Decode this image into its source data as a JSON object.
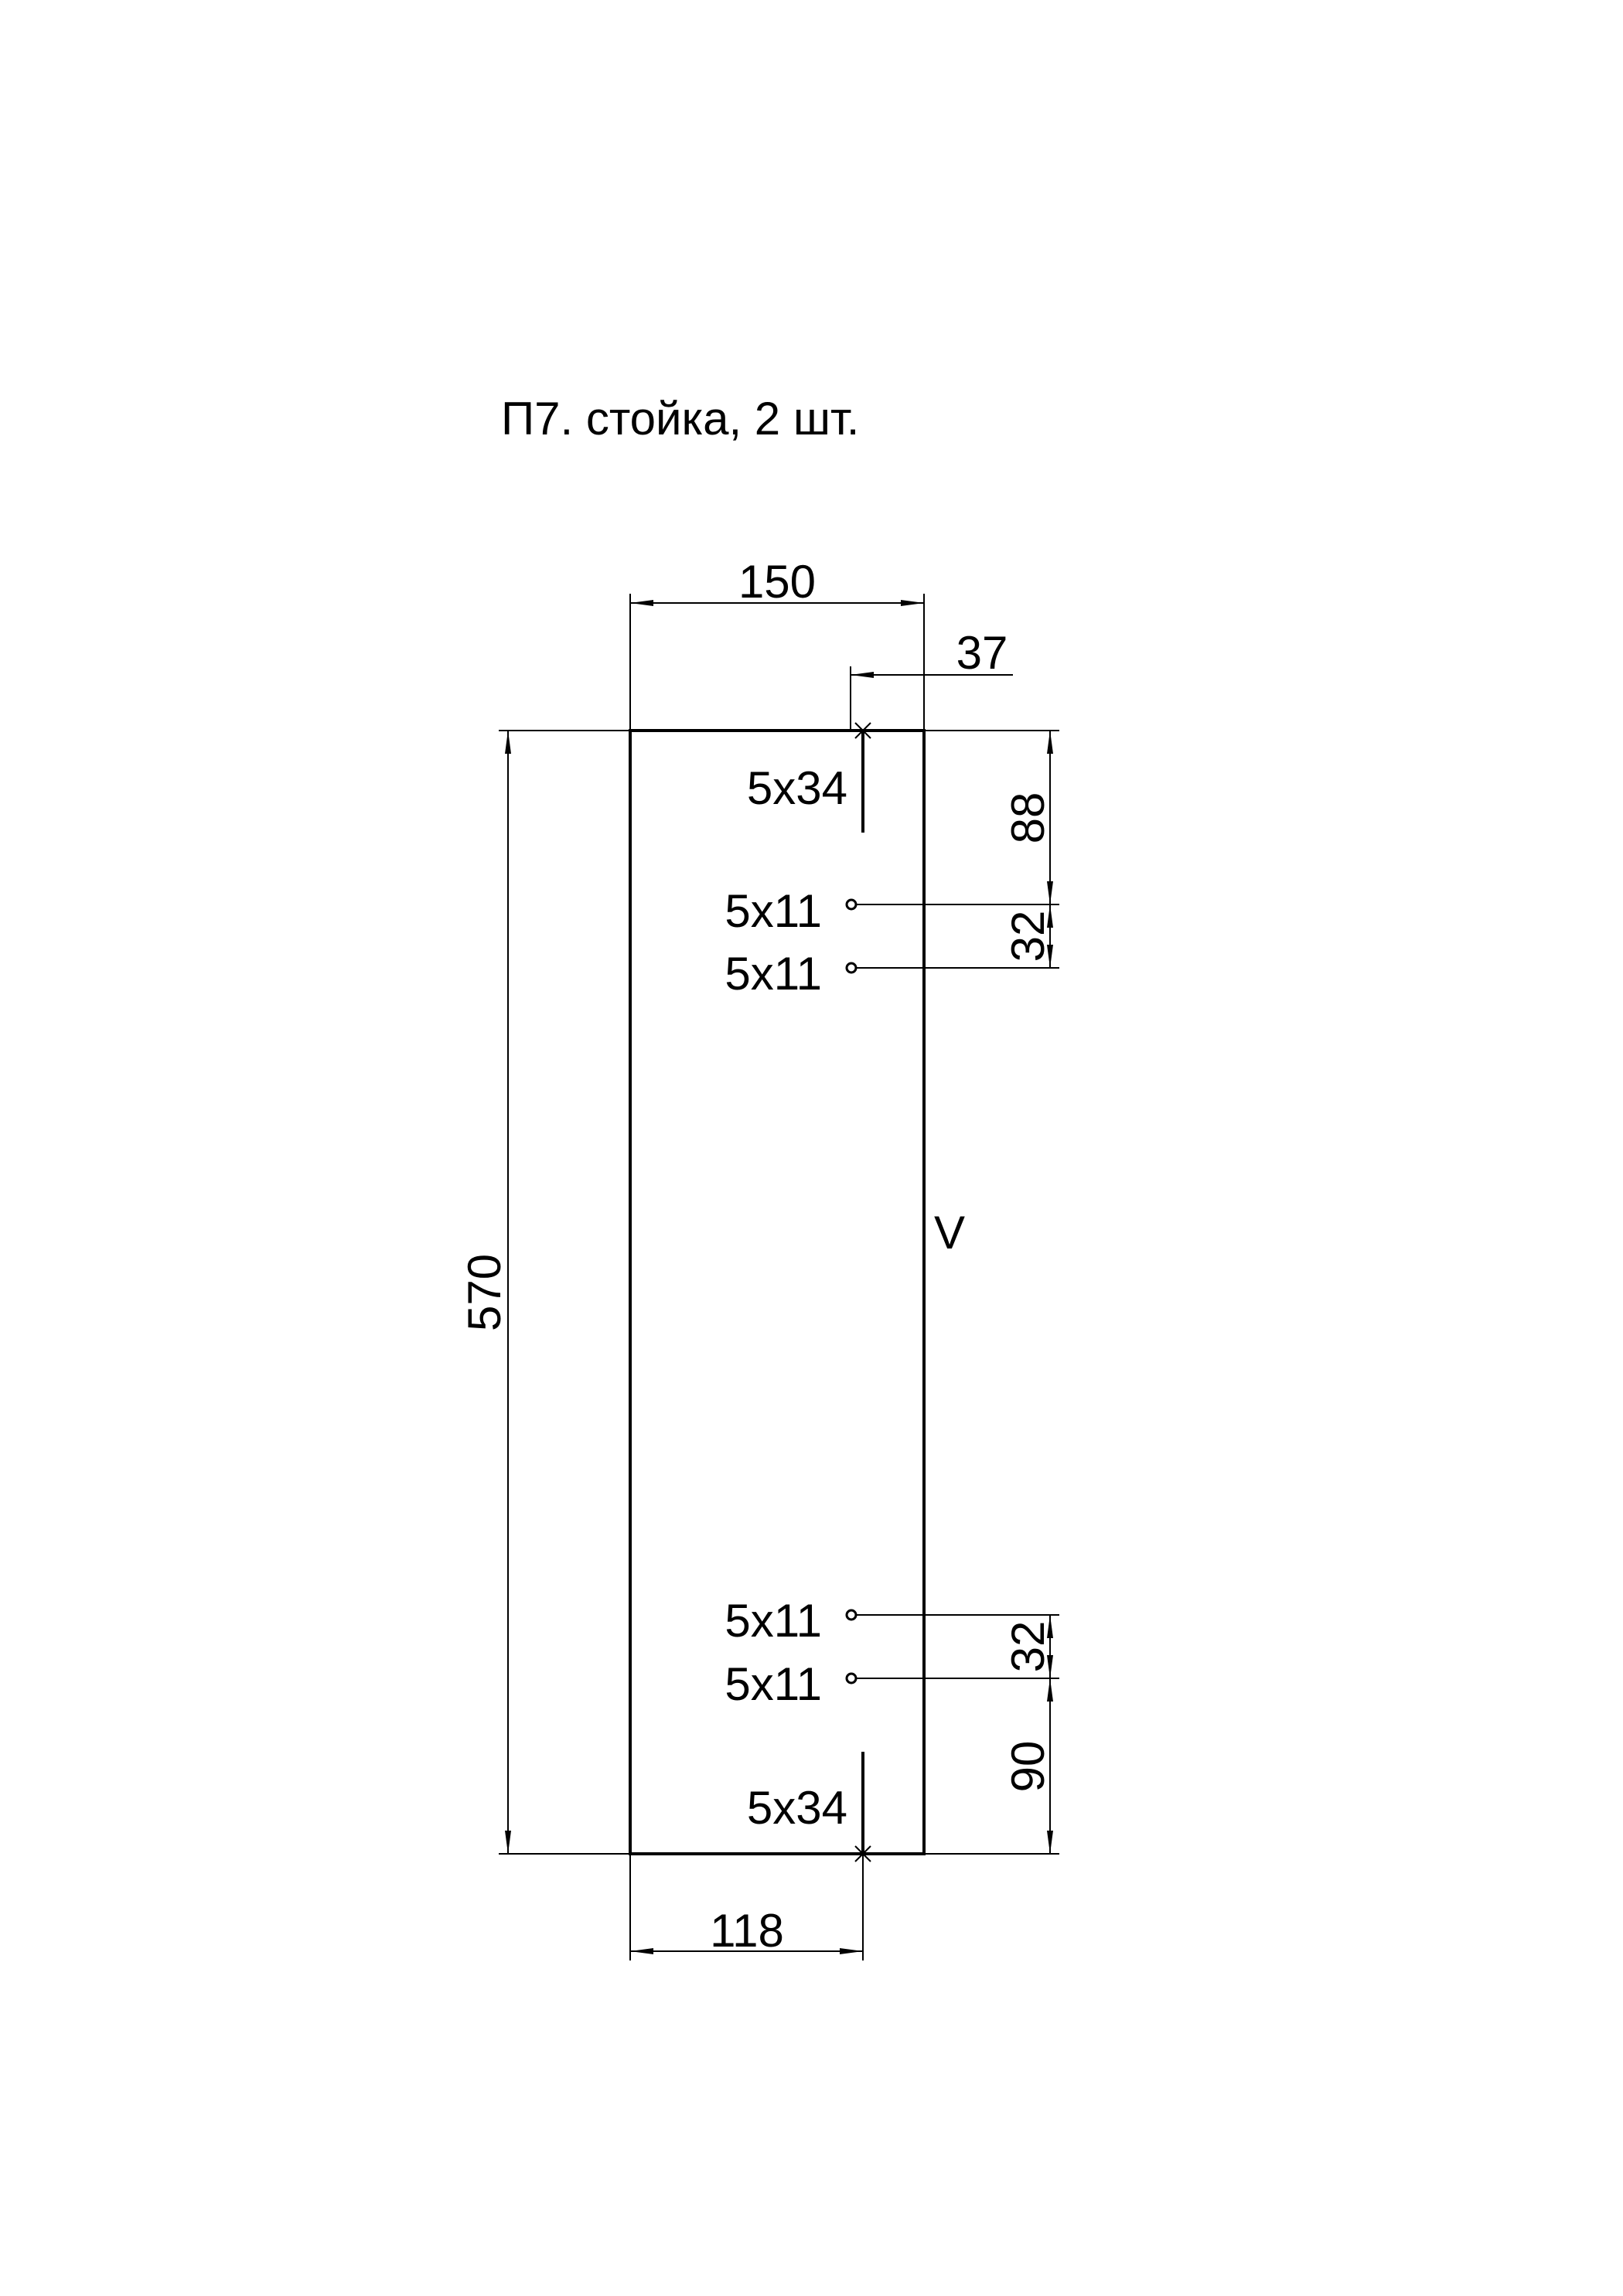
{
  "title": "П7. стойка, 2 шт.",
  "dimensions": {
    "overall_width": "150",
    "overall_height": "570",
    "edge_offset_top": "37",
    "edge_offset_bottom": "118",
    "top_hole_offset": "88",
    "top_hole_spacing": "32",
    "bottom_hole_spacing": "32",
    "bottom_hole_offset": "90"
  },
  "holes": {
    "slot_top": "5x34",
    "hole_1": "5x11",
    "hole_2": "5x11",
    "hole_3": "5x11",
    "hole_4": "5x11",
    "slot_bottom": "5x34"
  },
  "edge_mark": "V"
}
